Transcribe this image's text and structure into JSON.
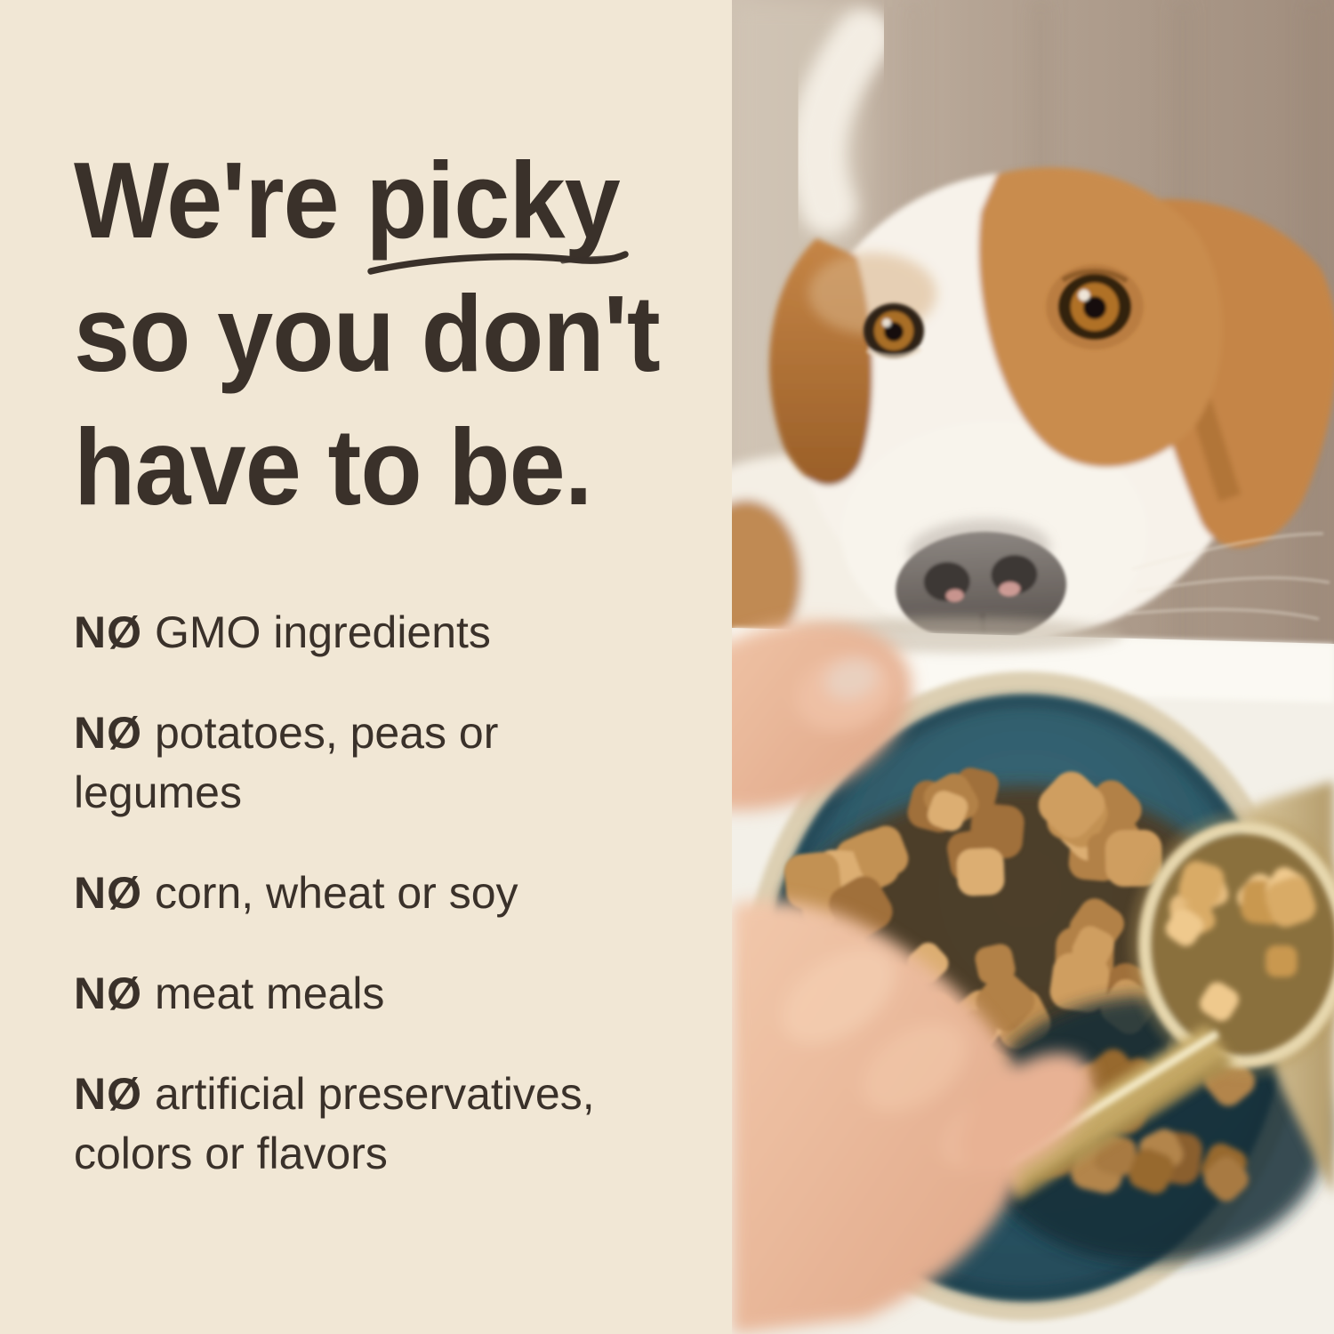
{
  "panel": {
    "background_color": "#F1E7D5",
    "text_color": "#3A312A",
    "headline": {
      "line1_pre": "We're ",
      "line1_emph": "picky",
      "line2": "so you don't",
      "line3": "have to be."
    }
  },
  "checklist": {
    "items": [
      {
        "prefix": "NØ",
        "text": "GMO ingredients"
      },
      {
        "prefix": "NØ",
        "text": "potatoes, peas or legumes"
      },
      {
        "prefix": "NØ",
        "text": "corn, wheat or soy"
      },
      {
        "prefix": "NØ",
        "text": "meat meals"
      },
      {
        "prefix": "NØ",
        "text": "artificial preservatives, colors or flavors"
      }
    ]
  },
  "photo": {
    "description": "A white and tan dog peeks over a white table edge at a dark teal bowl full of kibble while a hand pours more kibble from a brass measuring scoop",
    "colors": {
      "wall": "#AD9B8D",
      "dog_white": "#F7F2EA",
      "dog_tan": "#C58546",
      "table": "#F3F0E8",
      "bowl_teal": "#2B5564",
      "bowl_rim": "#DCCFB2",
      "kibble": "#C89A5B",
      "scoop_brass": "#C9AF6E",
      "hand_skin": "#EBBEA2"
    }
  }
}
